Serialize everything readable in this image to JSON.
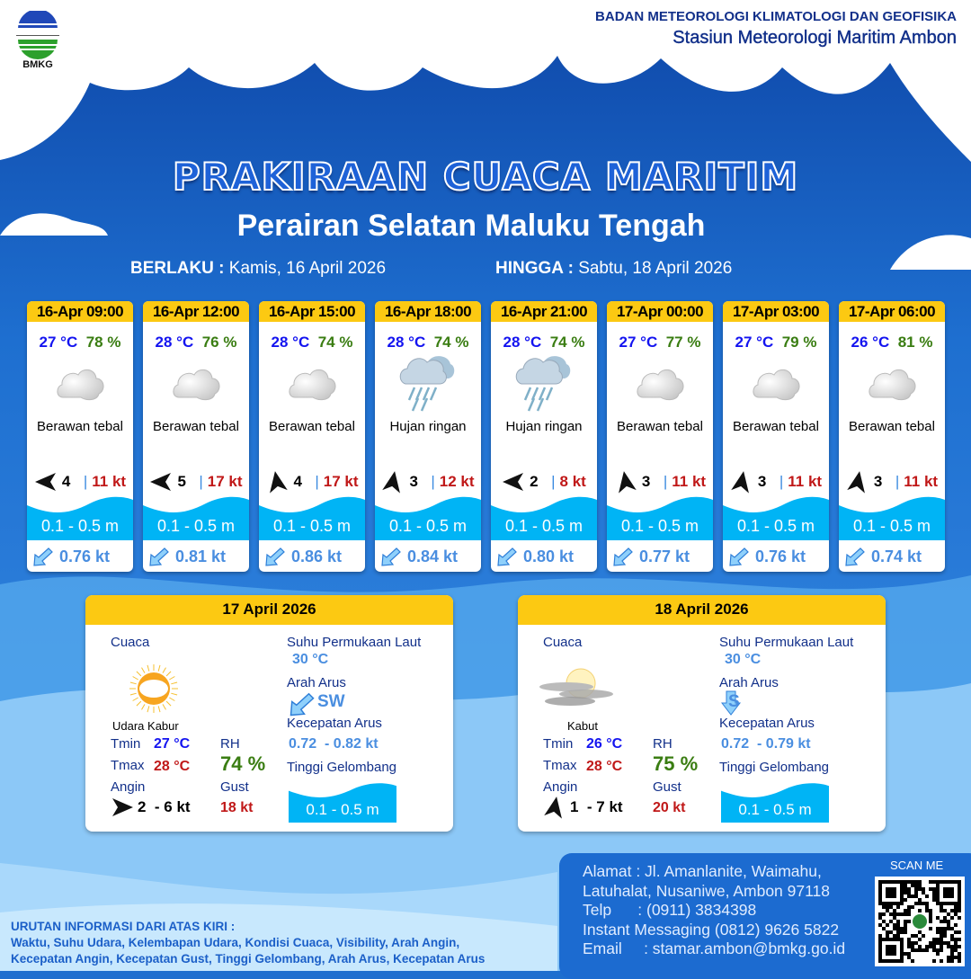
{
  "header": {
    "org_name": "BADAN METEOROLOGI KLIMATOLOGI DAN GEOFISIKA",
    "station": "Stasiun Meteorologi Maritim Ambon",
    "logo_text": "BMKG"
  },
  "title": "PRAKIRAAN CUACA MARITIM",
  "subtitle": "Perairan Selatan Maluku Tengah",
  "validity": {
    "from_label": "BERLAKU :",
    "from_value": "Kamis, 16 April 2026",
    "to_label": "HINGGA :",
    "to_value": "Sabtu, 18 April 2026"
  },
  "forecasts": [
    {
      "time": "16-Apr 09:00",
      "temp": "27 °C",
      "rh": "78 %",
      "icon": "cloudy-icon",
      "weather": "Berawan tebal",
      "wind_dir_deg": 180,
      "wind": "4",
      "gust": "11 kt",
      "wave": "0.1 - 0.5 m",
      "current_dir": "SW",
      "current": "0.76 kt"
    },
    {
      "time": "16-Apr 12:00",
      "temp": "28 °C",
      "rh": "76 %",
      "icon": "cloudy-icon",
      "weather": "Berawan tebal",
      "wind_dir_deg": 180,
      "wind": "5",
      "gust": "17 kt",
      "wave": "0.1 - 0.5 m",
      "current_dir": "SW",
      "current": "0.81 kt"
    },
    {
      "time": "16-Apr 15:00",
      "temp": "28 °C",
      "rh": "74 %",
      "icon": "cloudy-icon",
      "weather": "Berawan tebal",
      "wind_dir_deg": -100,
      "wind": "4",
      "gust": "17 kt",
      "wave": "0.1 - 0.5 m",
      "current_dir": "SW",
      "current": "0.86 kt"
    },
    {
      "time": "16-Apr 18:00",
      "temp": "28 °C",
      "rh": "74 %",
      "icon": "light-rain-icon",
      "weather": "Hujan ringan",
      "wind_dir_deg": -80,
      "wind": "3",
      "gust": "12 kt",
      "wave": "0.1 - 0.5 m",
      "current_dir": "SW",
      "current": "0.84 kt"
    },
    {
      "time": "16-Apr 21:00",
      "temp": "28 °C",
      "rh": "74 %",
      "icon": "light-rain-icon",
      "weather": "Hujan ringan",
      "wind_dir_deg": 180,
      "wind": "2",
      "gust": "8 kt",
      "wave": "0.1 - 0.5 m",
      "current_dir": "SW",
      "current": "0.80 kt"
    },
    {
      "time": "17-Apr 00:00",
      "temp": "27 °C",
      "rh": "77 %",
      "icon": "cloudy-icon",
      "weather": "Berawan tebal",
      "wind_dir_deg": -100,
      "wind": "3",
      "gust": "11 kt",
      "wave": "0.1 - 0.5 m",
      "current_dir": "SW",
      "current": "0.77 kt"
    },
    {
      "time": "17-Apr 03:00",
      "temp": "27 °C",
      "rh": "79 %",
      "icon": "cloudy-icon",
      "weather": "Berawan tebal",
      "wind_dir_deg": -80,
      "wind": "3",
      "gust": "11 kt",
      "wave": "0.1 - 0.5 m",
      "current_dir": "SW",
      "current": "0.76 kt"
    },
    {
      "time": "17-Apr 06:00",
      "temp": "26 °C",
      "rh": "81 %",
      "icon": "cloudy-icon",
      "weather": "Berawan tebal",
      "wind_dir_deg": -80,
      "wind": "3",
      "gust": "11 kt",
      "wave": "0.1 - 0.5 m",
      "current_dir": "SW",
      "current": "0.74 kt"
    }
  ],
  "daily": [
    {
      "date": "17 April 2026",
      "weather_label": "Cuaca",
      "icon": "haze-icon",
      "weather": "Udara Kabur",
      "tmin_label": "Tmin",
      "tmin": "27 °C",
      "tmax_label": "Tmax",
      "tmax": "28 °C",
      "rh_label": "RH",
      "rh": "74 %",
      "wind_label": "Angin",
      "wind_dir_deg": 0,
      "wind": "2  - 6 kt",
      "gust_label": "Gust",
      "gust": "18 kt",
      "sst_label": "Suhu Permukaan Laut",
      "sst": "30 °C",
      "current_dir_label": "Arah Arus",
      "current_dir": "SW",
      "current_speed_label": "Kecepatan Arus",
      "current_speed": "0.72  - 0.82 kt",
      "wave_label": "Tinggi Gelombang",
      "wave": "0.1 - 0.5 m"
    },
    {
      "date": "18 April 2026",
      "weather_label": "Cuaca",
      "icon": "fog-icon",
      "weather": "Kabut",
      "tmin_label": "Tmin",
      "tmin": "26 °C",
      "tmax_label": "Tmax",
      "tmax": "28 °C",
      "rh_label": "RH",
      "rh": "75 %",
      "wind_label": "Angin",
      "wind_dir_deg": -80,
      "wind": "1  - 7 kt",
      "gust_label": "Gust",
      "gust": "20 kt",
      "sst_label": "Suhu Permukaan Laut",
      "sst": "30 °C",
      "current_dir_label": "Arah Arus",
      "current_dir": "S",
      "current_speed_label": "Kecepatan Arus",
      "current_speed": "0.72  - 0.79 kt",
      "wave_label": "Tinggi Gelombang",
      "wave": "0.1 - 0.5 m"
    }
  ],
  "footer": {
    "info_title": "URUTAN INFORMASI DARI ATAS KIRI :",
    "info_line1": "Waktu, Suhu Udara, Kelembapan Udara, Kondisi Cuaca, Visibility, Arah Angin,",
    "info_line2": "Kecepatan Angin, Kecepatan Gust, Tinggi Gelombang, Arah Arus, Kecepatan Arus",
    "address1": "Alamat : Jl. Amanlanite, Waimahu,",
    "address2": "Latuhalat, Nusaniwe, Ambon 97118",
    "phone": "Telp      : (0911) 3834398",
    "im": "Instant Messaging (0812) 9626 5822",
    "email": "Email     : stamar.ambon@bmkg.go.id",
    "qr_label": "SCAN ME"
  },
  "colors": {
    "header_yellow": "#fcc912",
    "wave_blue": "#00b4f5",
    "temp": "#1414f0",
    "rh": "#3a7d12",
    "gust": "#c01818",
    "current": "#4a8ee0"
  }
}
